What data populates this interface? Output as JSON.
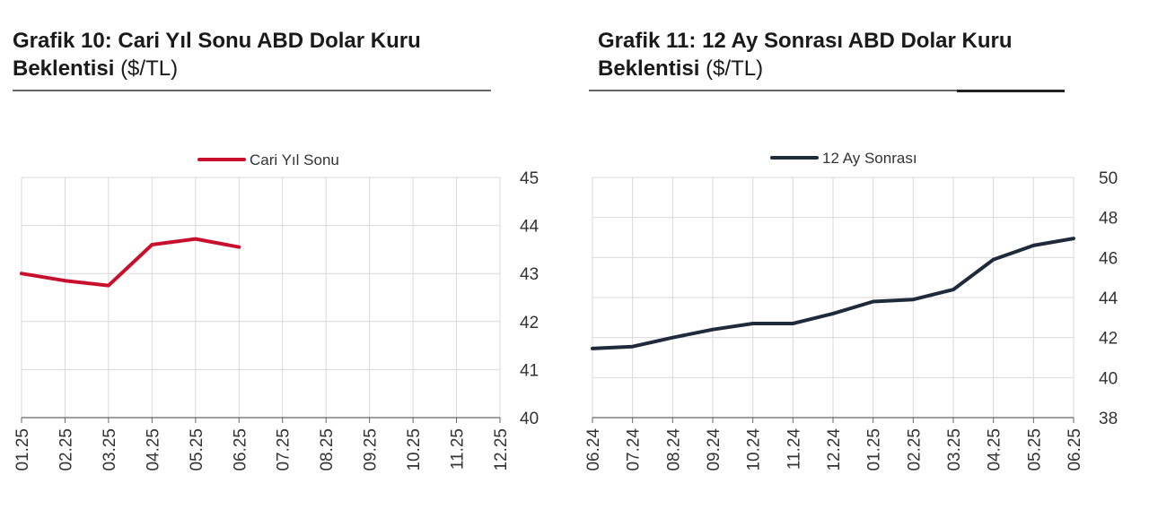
{
  "charts": {
    "left": {
      "title_main": "Grafik 10: Cari Yıl Sonu ABD Dolar Kuru Beklentisi",
      "title_unit": "($/TL)"
    },
    "right": {
      "title_main": "Grafik 11: 12 Ay Sonrası ABD Dolar Kuru Beklentisi",
      "title_unit": "($/TL)"
    }
  },
  "chart_data": [
    {
      "type": "line",
      "title": "Grafik 10: Cari Yıl Sonu ABD Dolar Kuru Beklentisi ($/TL)",
      "categories": [
        "01.25",
        "02.25",
        "03.25",
        "04.25",
        "05.25",
        "06.25",
        "07.25",
        "08.25",
        "09.25",
        "10.25",
        "11.25",
        "12.25"
      ],
      "series": [
        {
          "name": "Cari Yıl Sonu",
          "color": "#c8102e",
          "values": [
            43.0,
            42.85,
            42.75,
            43.6,
            43.72,
            43.55,
            null,
            null,
            null,
            null,
            null,
            null
          ]
        }
      ],
      "ylim": [
        40,
        45
      ],
      "yticks": [
        40,
        41,
        42,
        43,
        44,
        45
      ],
      "y_axis_side": "right",
      "grid": true,
      "legend": "top-center"
    },
    {
      "type": "line",
      "title": "Grafik 11: 12 Ay Sonrası ABD Dolar Kuru Beklentisi ($/TL)",
      "categories": [
        "06.24",
        "07.24",
        "08.24",
        "09.24",
        "10.24",
        "11.24",
        "12.24",
        "01.25",
        "02.25",
        "03.25",
        "04.25",
        "05.25",
        "06.25"
      ],
      "series": [
        {
          "name": "12 Ay Sonrası",
          "color": "#1f2a3a",
          "values": [
            41.45,
            41.55,
            42.0,
            42.4,
            42.7,
            42.7,
            43.2,
            43.8,
            43.9,
            44.4,
            45.9,
            46.6,
            46.95
          ]
        }
      ],
      "ylim": [
        38,
        50
      ],
      "yticks": [
        38,
        40,
        42,
        44,
        46,
        48,
        50
      ],
      "y_axis_side": "right",
      "grid": true,
      "legend": "top-center"
    }
  ]
}
